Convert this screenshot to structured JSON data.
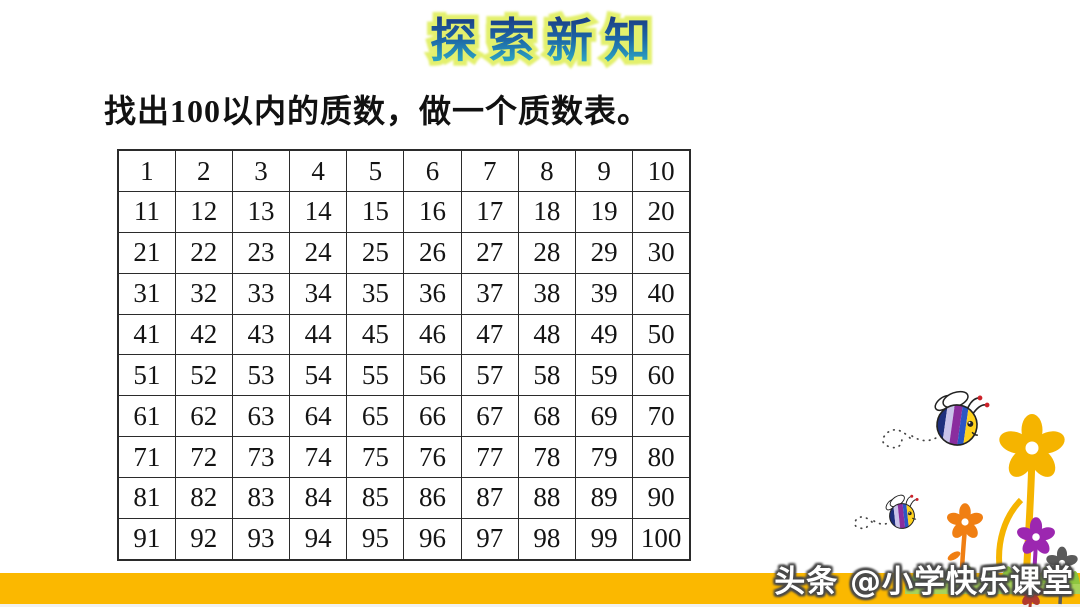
{
  "header": {
    "title": "探索新知"
  },
  "instruction": "找出100以内的质数，做一个质数表。",
  "grid": {
    "rows": [
      [
        1,
        2,
        3,
        4,
        5,
        6,
        7,
        8,
        9,
        10
      ],
      [
        11,
        12,
        13,
        14,
        15,
        16,
        17,
        18,
        19,
        20
      ],
      [
        21,
        22,
        23,
        24,
        25,
        26,
        27,
        28,
        29,
        30
      ],
      [
        31,
        32,
        33,
        34,
        35,
        36,
        37,
        38,
        39,
        40
      ],
      [
        41,
        42,
        43,
        44,
        45,
        46,
        47,
        48,
        49,
        50
      ],
      [
        51,
        52,
        53,
        54,
        55,
        56,
        57,
        58,
        59,
        60
      ],
      [
        61,
        62,
        63,
        64,
        65,
        66,
        67,
        68,
        69,
        70
      ],
      [
        71,
        72,
        73,
        74,
        75,
        76,
        77,
        78,
        79,
        80
      ],
      [
        81,
        82,
        83,
        84,
        85,
        86,
        87,
        88,
        89,
        90
      ],
      [
        91,
        92,
        93,
        94,
        95,
        96,
        97,
        98,
        99,
        100
      ]
    ]
  },
  "watermark": "头条 @小学快乐课堂",
  "decorations": {
    "icons": [
      "bee-icon-large",
      "bee-icon-small",
      "flower-yellow-icon",
      "flower-orange-icon",
      "flower-purple-icon",
      "flower-gray-icon",
      "grass-icon"
    ]
  },
  "colors": {
    "title_grad_top": "#1b3f86",
    "title_grad_mid": "#1d6aa8",
    "title_grad_bottom": "#2fb3c9",
    "title_glow": "#e3f06d",
    "bottom_bar": "#fbb800",
    "table_border": "#2b2b2b"
  }
}
